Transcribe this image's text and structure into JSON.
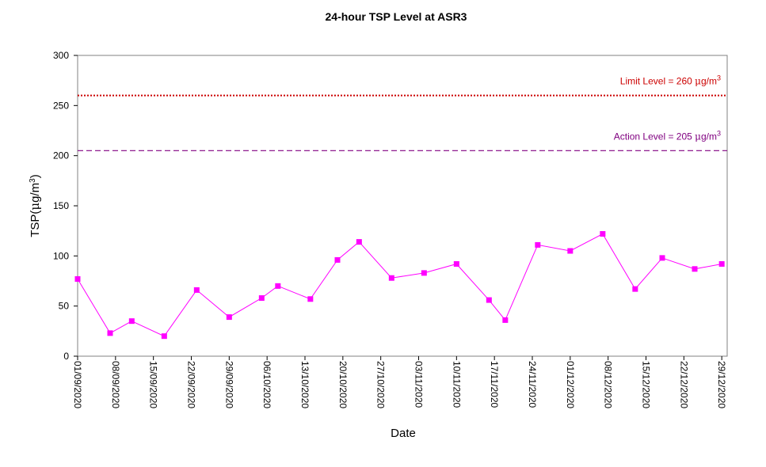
{
  "chart_data": {
    "type": "line",
    "title": "24-hour TSP Level at ASR3",
    "xlabel": "Date",
    "ylabel": "TSP(μg/m³)",
    "ylabel_parts": {
      "base": "TSP(",
      "mu": "μ",
      "unit": "g/m",
      "sup": "3",
      "close": ")"
    },
    "ylim": [
      0,
      300
    ],
    "yticks": [
      0,
      50,
      100,
      150,
      200,
      250,
      300
    ],
    "xlim": [
      "01/09/2020",
      "30/12/2020"
    ],
    "xticks": [
      "01/09/2020",
      "08/09/2020",
      "15/09/2020",
      "22/09/2020",
      "29/09/2020",
      "06/10/2020",
      "13/10/2020",
      "20/10/2020",
      "27/10/2020",
      "03/11/2020",
      "10/11/2020",
      "17/11/2020",
      "24/11/2020",
      "01/12/2020",
      "08/12/2020",
      "15/12/2020",
      "22/12/2020",
      "29/12/2020"
    ],
    "grid": false,
    "series": [
      {
        "color": "#ff00ff",
        "marker": "square",
        "points": [
          {
            "x": "01/09/2020",
            "y": 77
          },
          {
            "x": "07/09/2020",
            "y": 23
          },
          {
            "x": "11/09/2020",
            "y": 35
          },
          {
            "x": "17/09/2020",
            "y": 20
          },
          {
            "x": "23/09/2020",
            "y": 66
          },
          {
            "x": "29/09/2020",
            "y": 39
          },
          {
            "x": "05/10/2020",
            "y": 58
          },
          {
            "x": "08/10/2020",
            "y": 70
          },
          {
            "x": "14/10/2020",
            "y": 57
          },
          {
            "x": "19/10/2020",
            "y": 96
          },
          {
            "x": "23/10/2020",
            "y": 114
          },
          {
            "x": "29/10/2020",
            "y": 78
          },
          {
            "x": "04/11/2020",
            "y": 83
          },
          {
            "x": "10/11/2020",
            "y": 92
          },
          {
            "x": "16/11/2020",
            "y": 56
          },
          {
            "x": "19/11/2020",
            "y": 36
          },
          {
            "x": "25/11/2020",
            "y": 111
          },
          {
            "x": "01/12/2020",
            "y": 105
          },
          {
            "x": "07/12/2020",
            "y": 122
          },
          {
            "x": "13/12/2020",
            "y": 67
          },
          {
            "x": "18/12/2020",
            "y": 98
          },
          {
            "x": "24/12/2020",
            "y": 87
          },
          {
            "x": "29/12/2020",
            "y": 92
          }
        ]
      }
    ],
    "reference_lines": [
      {
        "label": "Limit Level  = 260 μg/m³",
        "label_parts": {
          "text": "Limit Level  = 260 ",
          "mu": "μ",
          "unit": "g/m",
          "sup": "3"
        },
        "value": 260,
        "color": "#cc0000",
        "style": "dotted"
      },
      {
        "label": "Action Level  = 205 μg/m³",
        "label_parts": {
          "text": "Action Level  = 205 ",
          "mu": "μ",
          "unit": "g/m",
          "sup": "3"
        },
        "value": 205,
        "color": "#800080",
        "style": "dashed"
      }
    ]
  }
}
